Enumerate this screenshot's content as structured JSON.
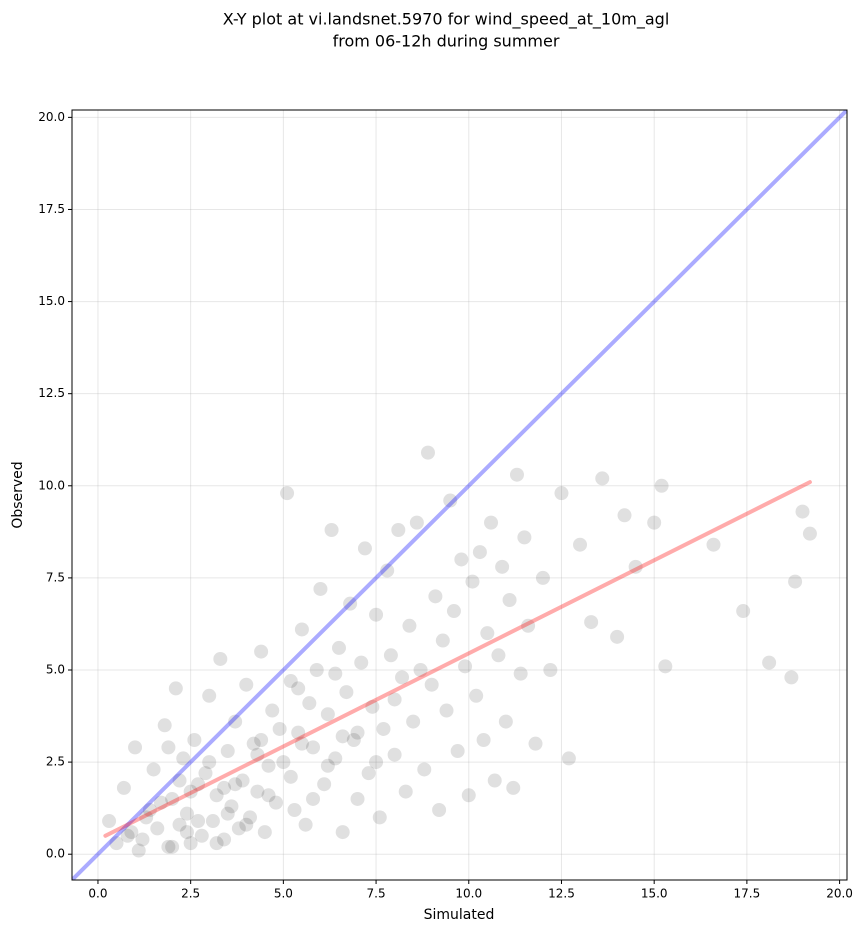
{
  "chart_data": {
    "type": "scatter",
    "title": "X-Y plot at vi.landsnet.5970 for wind_speed_at_10m_agl",
    "subtitle": "from 06-12h during summer",
    "xlabel": "Simulated",
    "ylabel": "Observed",
    "xlim": [
      -0.7,
      20.2
    ],
    "ylim": [
      -0.7,
      20.2
    ],
    "xticks": [
      {
        "value": 0,
        "label": "0.0"
      },
      2.5,
      {
        "value": 5,
        "label": "5.0"
      },
      7.5,
      {
        "value": 10,
        "label": "10.0"
      },
      12.5,
      {
        "value": 15,
        "label": "15.0"
      },
      17.5,
      {
        "value": 20,
        "label": "20.0"
      }
    ],
    "yticks": [
      {
        "value": 0,
        "label": "0.0"
      },
      2.5,
      {
        "value": 5,
        "label": "5.0"
      },
      7.5,
      {
        "value": 10,
        "label": "10.0"
      },
      12.5,
      {
        "value": 15,
        "label": "15.0"
      },
      17.5,
      {
        "value": 20,
        "label": "20.0"
      }
    ],
    "grid": true,
    "points": {
      "color": "#000000",
      "x": [
        0.3,
        0.5,
        0.7,
        0.9,
        1.0,
        1.2,
        1.4,
        1.5,
        1.6,
        1.8,
        1.9,
        2.0,
        2.1,
        2.2,
        2.3,
        2.4,
        2.5,
        2.6,
        2.7,
        2.8,
        2.9,
        3.0,
        3.1,
        3.2,
        3.3,
        3.4,
        3.5,
        3.6,
        3.7,
        3.8,
        3.9,
        4.0,
        4.1,
        4.2,
        4.3,
        4.4,
        4.5,
        4.6,
        4.7,
        4.8,
        5.0,
        5.1,
        5.2,
        5.3,
        5.4,
        5.5,
        5.6,
        5.7,
        5.8,
        5.9,
        6.0,
        6.1,
        6.2,
        6.3,
        6.4,
        6.5,
        6.6,
        6.7,
        6.8,
        6.9,
        7.0,
        7.1,
        7.2,
        7.3,
        7.4,
        7.5,
        7.6,
        7.7,
        7.8,
        7.9,
        8.0,
        8.1,
        8.2,
        8.3,
        8.4,
        8.5,
        8.6,
        8.7,
        8.8,
        8.9,
        9.0,
        9.1,
        9.2,
        9.3,
        9.4,
        9.5,
        9.6,
        9.7,
        9.8,
        9.9,
        10.0,
        10.1,
        10.2,
        10.3,
        10.4,
        10.5,
        10.6,
        10.7,
        10.8,
        10.9,
        11.0,
        11.1,
        11.2,
        11.3,
        11.4,
        11.5,
        11.6,
        11.8,
        12.0,
        12.2,
        12.5,
        12.7,
        13.0,
        13.3,
        13.6,
        14.0,
        14.2,
        14.5,
        15.0,
        15.2,
        15.3,
        16.6,
        17.4,
        18.1,
        18.7,
        18.8,
        19.0,
        19.2,
        0.8,
        1.3,
        1.7,
        2.0,
        2.2,
        2.5,
        2.7,
        3.0,
        3.2,
        3.5,
        3.7,
        4.0,
        4.3,
        4.6,
        4.9,
        5.2,
        5.5,
        5.8,
        6.2,
        6.6,
        1.1,
        1.9,
        2.4,
        3.4,
        4.4,
        5.4,
        6.4,
        7.0,
        7.5,
        8.0
      ],
      "y": [
        0.9,
        0.3,
        1.8,
        0.6,
        2.9,
        0.4,
        1.2,
        2.3,
        0.7,
        3.5,
        0.2,
        1.5,
        4.5,
        0.8,
        2.6,
        1.1,
        0.3,
        3.1,
        1.9,
        0.5,
        2.2,
        4.3,
        0.9,
        1.6,
        5.3,
        0.4,
        2.8,
        1.3,
        3.6,
        0.7,
        2.0,
        4.6,
        1.0,
        3.0,
        1.7,
        5.5,
        0.6,
        2.4,
        3.9,
        1.4,
        2.5,
        9.8,
        4.7,
        1.2,
        3.3,
        6.1,
        0.8,
        4.1,
        2.9,
        5.0,
        7.2,
        1.9,
        3.8,
        8.8,
        2.6,
        5.6,
        0.6,
        4.4,
        6.8,
        3.1,
        1.5,
        5.2,
        8.3,
        2.2,
        4.0,
        6.5,
        1.0,
        3.4,
        7.7,
        5.4,
        2.7,
        8.8,
        4.8,
        1.7,
        6.2,
        3.6,
        9.0,
        5.0,
        2.3,
        10.9,
        4.6,
        7.0,
        1.2,
        5.8,
        3.9,
        9.6,
        6.6,
        2.8,
        8.0,
        5.1,
        1.6,
        7.4,
        4.3,
        8.2,
        3.1,
        6.0,
        9.0,
        2.0,
        5.4,
        7.8,
        3.6,
        6.9,
        1.8,
        10.3,
        4.9,
        8.6,
        6.2,
        3.0,
        7.5,
        5.0,
        9.8,
        2.6,
        8.4,
        6.3,
        10.2,
        5.9,
        9.2,
        7.8,
        9.0,
        10.0,
        5.1,
        8.4,
        6.6,
        5.2,
        4.8,
        7.4,
        9.3,
        8.7,
        0.5,
        1.0,
        1.4,
        0.2,
        2.0,
        1.7,
        0.9,
        2.5,
        0.3,
        1.1,
        1.9,
        0.8,
        2.7,
        1.6,
        3.4,
        2.1,
        3.0,
        1.5,
        2.4,
        3.2,
        0.1,
        2.9,
        0.6,
        1.8,
        3.1,
        4.5,
        4.9,
        3.3,
        2.5,
        4.2
      ]
    },
    "lines": [
      {
        "color": "#0000ff",
        "x": [
          -0.7,
          20.2
        ],
        "y": [
          -0.7,
          20.2
        ]
      },
      {
        "color": "#ff0000",
        "x": [
          0.2,
          19.2
        ],
        "y": [
          0.5,
          10.1
        ]
      }
    ]
  }
}
